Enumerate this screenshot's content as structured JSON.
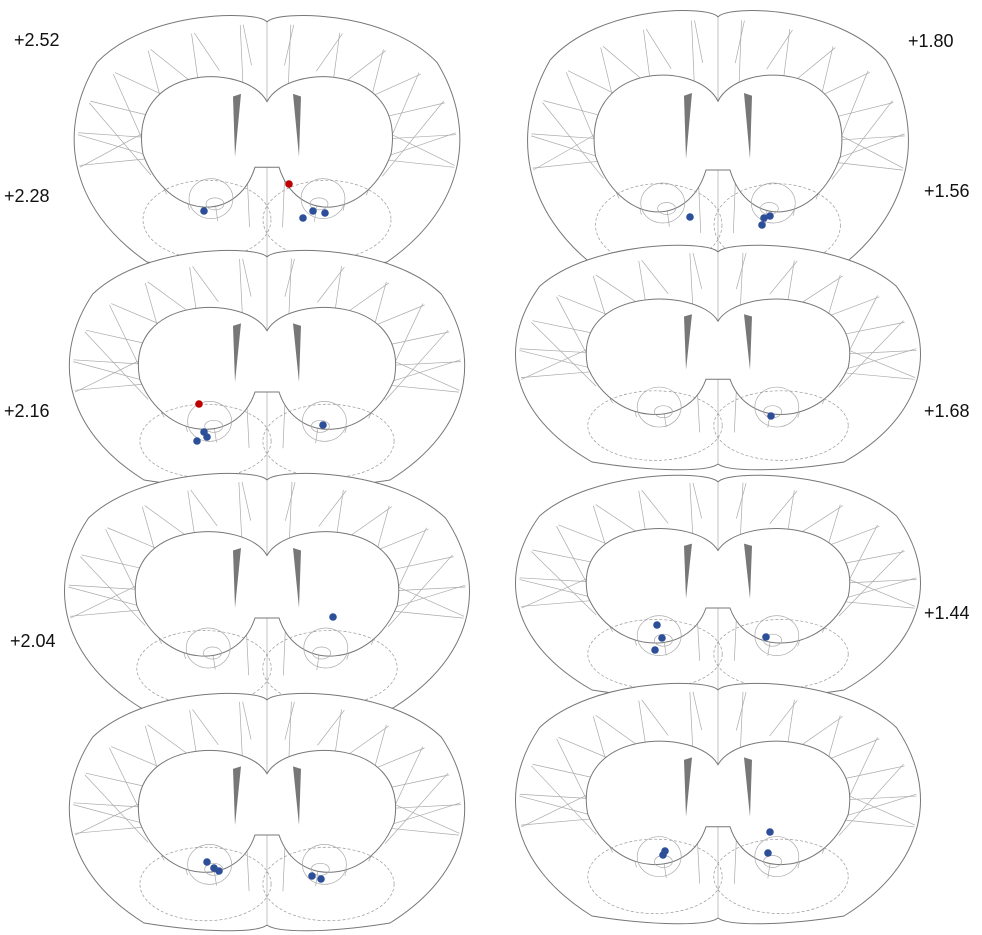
{
  "labels": {
    "left": [
      "+2.52",
      "+2.28",
      "+2.16",
      "+2.04"
    ],
    "right": [
      "+1.80",
      "+1.56",
      "+1.68",
      "+1.44"
    ]
  }
}
